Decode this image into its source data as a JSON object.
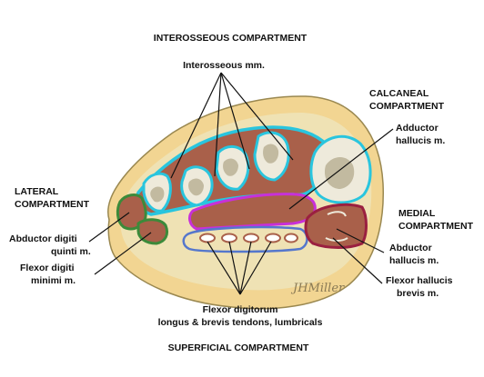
{
  "labels": {
    "interosseous_compartment": "INTEROSSEOUS COMPARTMENT",
    "interosseous_mm": "Interosseous mm.",
    "calcaneal_line1": "CALCANEAL",
    "calcaneal_line2": "COMPARTMENT",
    "adductor_line1": "Adductor",
    "adductor_line2": "hallucis m.",
    "lateral_line1": "LATERAL",
    "lateral_line2": "COMPARTMENT",
    "medial_line1": "MEDIAL",
    "medial_line2": "COMPARTMENT",
    "abd_digiti_line1": "Abductor digiti",
    "abd_digiti_line2": "quinti m.",
    "flex_digiti_line1": "Flexor digiti",
    "flex_digiti_line2": "minimi m.",
    "abd_hallucis_line1": "Abductor",
    "abd_hallucis_line2": "hallucis m.",
    "flex_hallucis_line1": "Flexor hallucis",
    "flex_hallucis_line2": "brevis m.",
    "flex_digitorum_line1": "Flexor digitorum",
    "flex_digitorum_line2": "longus & brevis tendons, lumbricals",
    "superficial_compartment": "SUPERFICIAL COMPARTMENT"
  },
  "signature": "JHMiller",
  "colors": {
    "skin": "#f2d592",
    "fat": "#efe2b4",
    "muscle": "#a9604a",
    "bone": "#eeeadb",
    "marrow": "#c2baa0",
    "interosseous_fascia": "#29c5de",
    "calcaneal_fascia": "#c830d8",
    "lateral_fascia": "#3c8a3a",
    "medial_fascia": "#9a2040",
    "superficial_fascia": "#5577cc",
    "leader_line": "#111111"
  }
}
